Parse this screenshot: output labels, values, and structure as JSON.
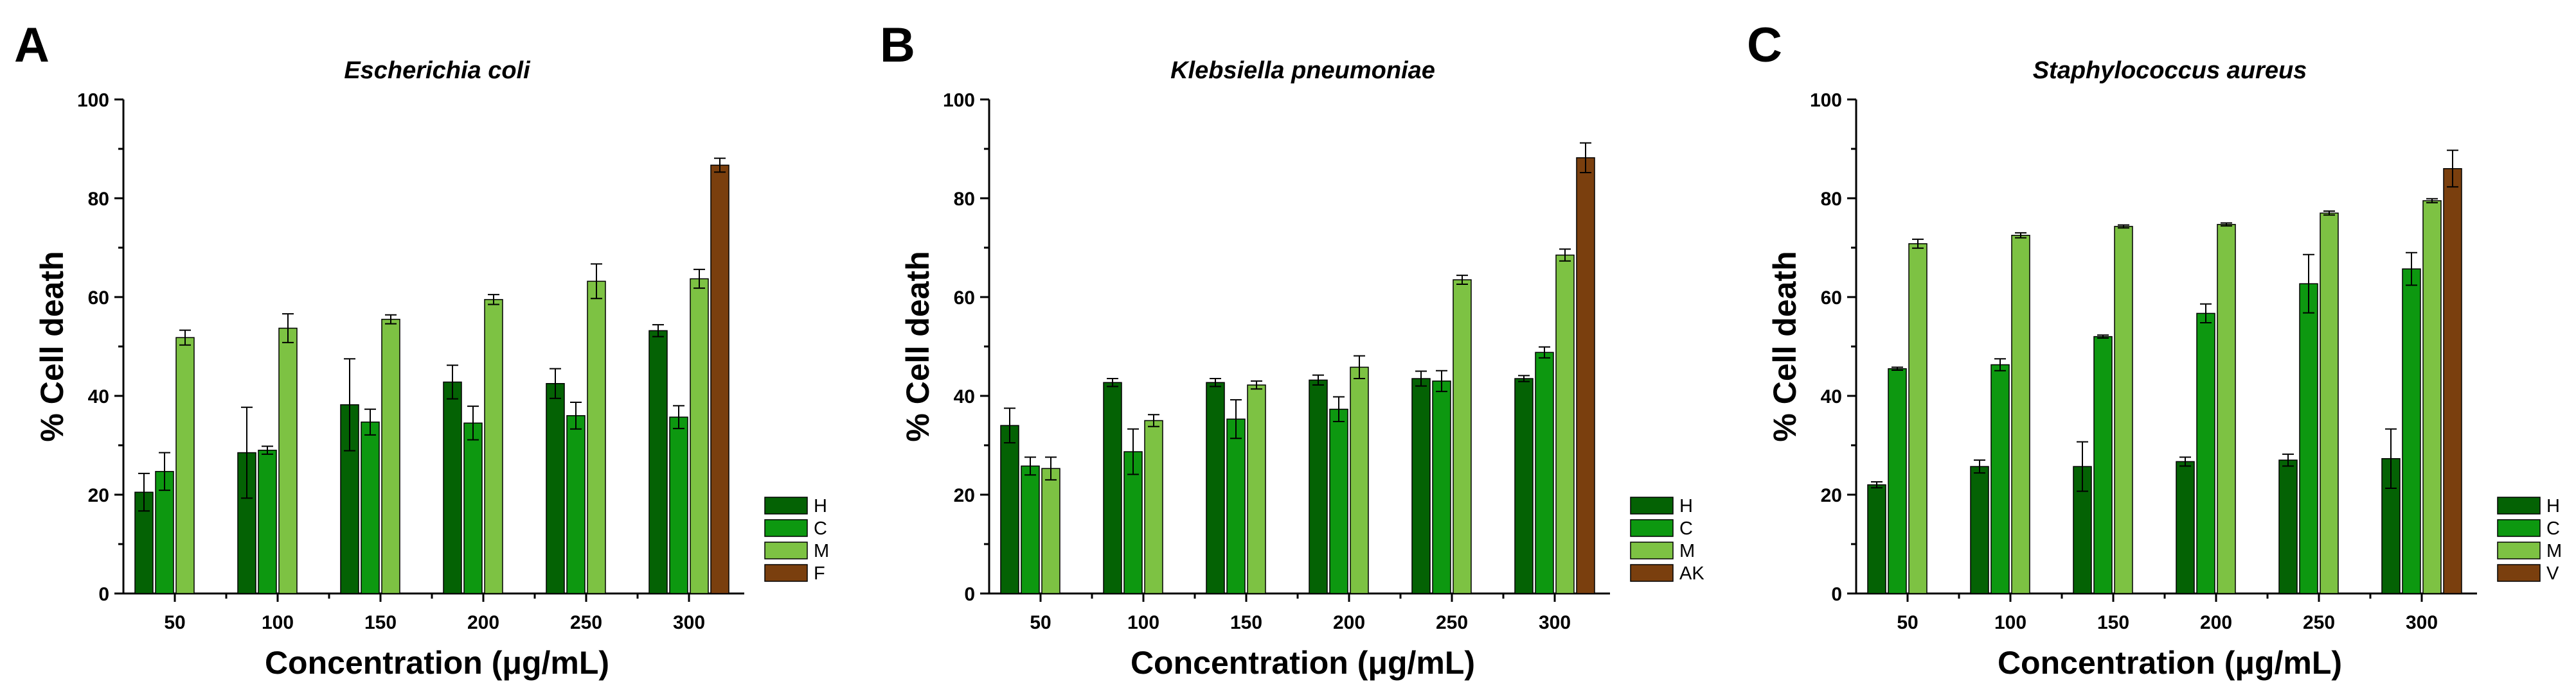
{
  "chart_data": [
    {
      "panel": "A",
      "type": "bar",
      "title": "Escherichia coli",
      "xlabel": "Concentration (μg/mL)",
      "ylabel": "% Cell death",
      "ylim": [
        0,
        100
      ],
      "yticks": [
        "0",
        "20",
        "40",
        "60",
        "80",
        "100"
      ],
      "categories": [
        "50",
        "100",
        "150",
        "200",
        "250",
        "300"
      ],
      "legend_position": "bottom-right",
      "series": [
        {
          "name": "H",
          "color": "#046204",
          "values": [
            20.5,
            28.5,
            38.2,
            42.8,
            42.5,
            53.2
          ],
          "errors": [
            3.8,
            9.2,
            9.3,
            3.4,
            3.0,
            1.2
          ]
        },
        {
          "name": "C",
          "color": "#0d9810",
          "values": [
            24.7,
            29.0,
            34.7,
            34.5,
            36.0,
            35.7
          ],
          "errors": [
            3.8,
            0.8,
            2.6,
            3.4,
            2.7,
            2.3
          ]
        },
        {
          "name": "M",
          "color": "#7dc243",
          "values": [
            51.8,
            53.7,
            55.5,
            59.5,
            63.2,
            63.7
          ],
          "errors": [
            1.5,
            2.9,
            0.9,
            1.0,
            3.5,
            1.9
          ]
        },
        {
          "name": "F",
          "color": "#7a3f0e",
          "values": [
            null,
            null,
            null,
            null,
            null,
            86.7
          ],
          "errors": [
            null,
            null,
            null,
            null,
            null,
            1.4
          ]
        }
      ]
    },
    {
      "panel": "B",
      "type": "bar",
      "title": "Klebsiella pneumoniae",
      "xlabel": "Concentration (μg/mL)",
      "ylabel": "% Cell death",
      "ylim": [
        0,
        100
      ],
      "yticks": [
        "0",
        "20",
        "40",
        "60",
        "80",
        "100"
      ],
      "categories": [
        "50",
        "100",
        "150",
        "200",
        "250",
        "300"
      ],
      "legend_position": "bottom-right",
      "series": [
        {
          "name": "H",
          "color": "#046204",
          "values": [
            34.0,
            42.7,
            42.7,
            43.2,
            43.5,
            43.5
          ],
          "errors": [
            3.5,
            0.8,
            0.8,
            1.0,
            1.5,
            0.6
          ]
        },
        {
          "name": "C",
          "color": "#0d9810",
          "values": [
            25.8,
            28.7,
            35.3,
            37.3,
            43.0,
            48.8
          ],
          "errors": [
            1.8,
            4.6,
            3.9,
            2.5,
            2.1,
            1.1
          ]
        },
        {
          "name": "M",
          "color": "#7dc243",
          "values": [
            25.3,
            35.0,
            42.2,
            45.8,
            63.5,
            68.5
          ],
          "errors": [
            2.3,
            1.2,
            0.8,
            2.3,
            0.9,
            1.2
          ]
        },
        {
          "name": "AK",
          "color": "#7a3f0e",
          "values": [
            null,
            null,
            null,
            null,
            null,
            88.2
          ],
          "errors": [
            null,
            null,
            null,
            null,
            null,
            3.0
          ]
        }
      ]
    },
    {
      "panel": "C",
      "type": "bar",
      "title": "Staphylococcus aureus",
      "xlabel": "Concentration (μg/mL)",
      "ylabel": "% Cell death",
      "ylim": [
        0,
        100
      ],
      "yticks": [
        "0",
        "20",
        "40",
        "60",
        "80",
        "100"
      ],
      "categories": [
        "50",
        "100",
        "150",
        "200",
        "250",
        "300"
      ],
      "legend_position": "bottom-right",
      "series": [
        {
          "name": "H",
          "color": "#046204",
          "values": [
            22.0,
            25.7,
            25.7,
            26.7,
            27.0,
            27.3
          ],
          "errors": [
            0.6,
            1.3,
            5.0,
            0.9,
            1.2,
            6.0
          ]
        },
        {
          "name": "C",
          "color": "#0d9810",
          "values": [
            45.5,
            46.3,
            52.0,
            56.7,
            62.7,
            65.7
          ],
          "errors": [
            0.3,
            1.2,
            0.3,
            1.9,
            5.9,
            3.3
          ]
        },
        {
          "name": "M",
          "color": "#7dc243",
          "values": [
            70.8,
            72.5,
            74.3,
            74.7,
            77.0,
            79.5
          ],
          "errors": [
            0.9,
            0.5,
            0.3,
            0.3,
            0.4,
            0.4
          ]
        },
        {
          "name": "V",
          "color": "#7a3f0e",
          "values": [
            null,
            null,
            null,
            null,
            null,
            86.0
          ],
          "errors": [
            null,
            null,
            null,
            null,
            null,
            3.7
          ]
        }
      ]
    }
  ]
}
